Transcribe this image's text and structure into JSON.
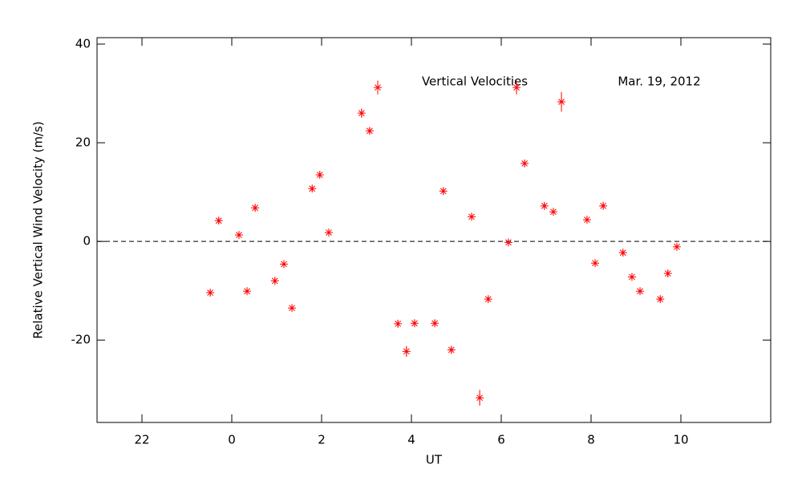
{
  "chart_data": {
    "type": "scatter",
    "title": "Vertical Velocities",
    "subtitle": "Mar. 19, 2012",
    "x_label": "UT",
    "y_label": "Relative Vertical Wind Velocity (m/s)",
    "xlim": [
      -3,
      12
    ],
    "xticks": [
      {
        "value": -2,
        "label": "22"
      },
      0,
      2,
      4,
      6,
      8,
      10
    ],
    "ylim": [
      -36.7,
      41.3
    ],
    "yticks": [
      -20,
      0,
      20,
      40
    ],
    "reference_line": 0,
    "series": [
      {
        "color": "#ff0000",
        "x": [
          -0.48,
          -0.29,
          0.16,
          0.34,
          0.52,
          0.96,
          1.16,
          1.34,
          1.79,
          1.96,
          2.16,
          2.89,
          3.07,
          3.25,
          3.7,
          3.89,
          4.07,
          4.52,
          4.71,
          4.89,
          5.34,
          5.52,
          5.71,
          6.16,
          6.34,
          6.52,
          6.96,
          7.16,
          7.34,
          7.91,
          8.09,
          8.27,
          8.71,
          8.91,
          9.09,
          9.54,
          9.71,
          9.91
        ],
        "values": [
          -10.4,
          4.2,
          1.3,
          -10.1,
          6.8,
          -8.0,
          -4.6,
          -13.5,
          10.7,
          13.5,
          1.8,
          26.0,
          22.4,
          31.2,
          -16.7,
          -22.3,
          -16.6,
          -16.6,
          10.2,
          -22.0,
          5.0,
          -31.7,
          -11.7,
          -0.2,
          31.2,
          15.8,
          7.2,
          6.0,
          28.3,
          4.4,
          -4.4,
          7.2,
          -2.3,
          -7.2,
          -10.1,
          -11.7,
          -6.5,
          -1.1
        ],
        "errors": [
          0.6,
          0.6,
          0.6,
          0.6,
          0.6,
          0.6,
          0.6,
          0.6,
          0.6,
          0.6,
          0.6,
          0.9,
          0.7,
          1.4,
          0.7,
          1.1,
          0.7,
          0.7,
          0.6,
          0.8,
          0.6,
          1.6,
          0.6,
          0.6,
          1.4,
          0.7,
          0.6,
          0.6,
          2.0,
          0.6,
          0.6,
          0.6,
          0.6,
          0.6,
          0.6,
          0.6,
          0.6,
          0.6
        ]
      }
    ]
  }
}
